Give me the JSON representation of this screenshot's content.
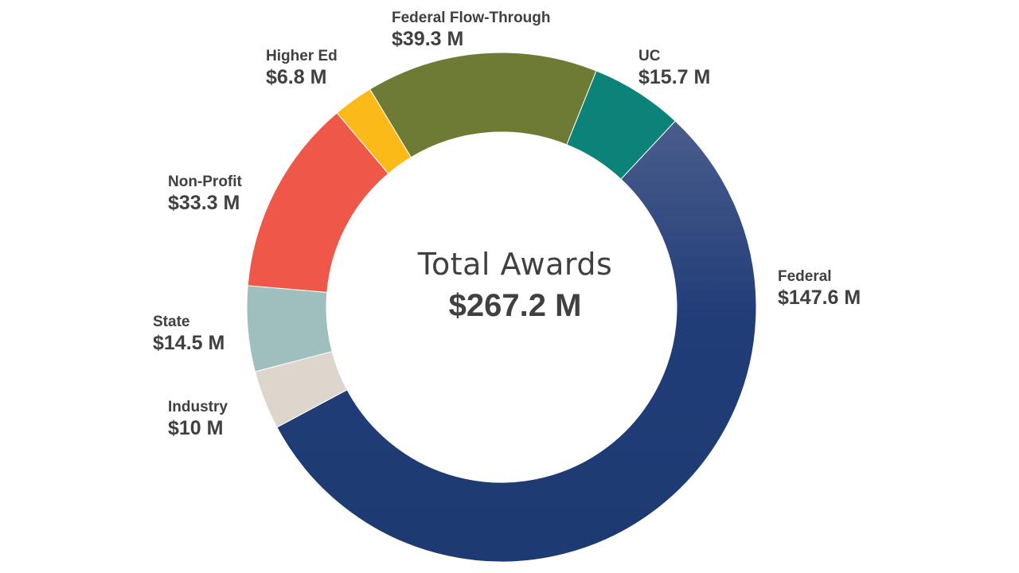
{
  "chart_data": {
    "type": "pie",
    "variant": "donut",
    "center_title": "Total Awards",
    "center_value": "$267.2 M",
    "unit": "$M",
    "slices": [
      {
        "name": "Federal",
        "value": 147.6,
        "value_label": "$147.6 M",
        "color": "#1f3b73",
        "color_top": "#4a5c8c"
      },
      {
        "name": "Industry",
        "value": 10,
        "value_label": "$10 M",
        "color": "#dcd6cd"
      },
      {
        "name": "State",
        "value": 14.5,
        "value_label": "$14.5 M",
        "color": "#9fbfbf"
      },
      {
        "name": "Non-Profit",
        "value": 33.3,
        "value_label": "$33.3 M",
        "color": "#ef5849"
      },
      {
        "name": "Higher Ed",
        "value": 6.8,
        "value_label": "$6.8 M",
        "color": "#fbba17"
      },
      {
        "name": "Federal Flow-Through",
        "value": 39.3,
        "value_label": "$39.3 M",
        "color": "#6d7b35"
      },
      {
        "name": "UC",
        "value": 15.7,
        "value_label": "$15.7 M",
        "color": "#0b8378"
      }
    ]
  }
}
